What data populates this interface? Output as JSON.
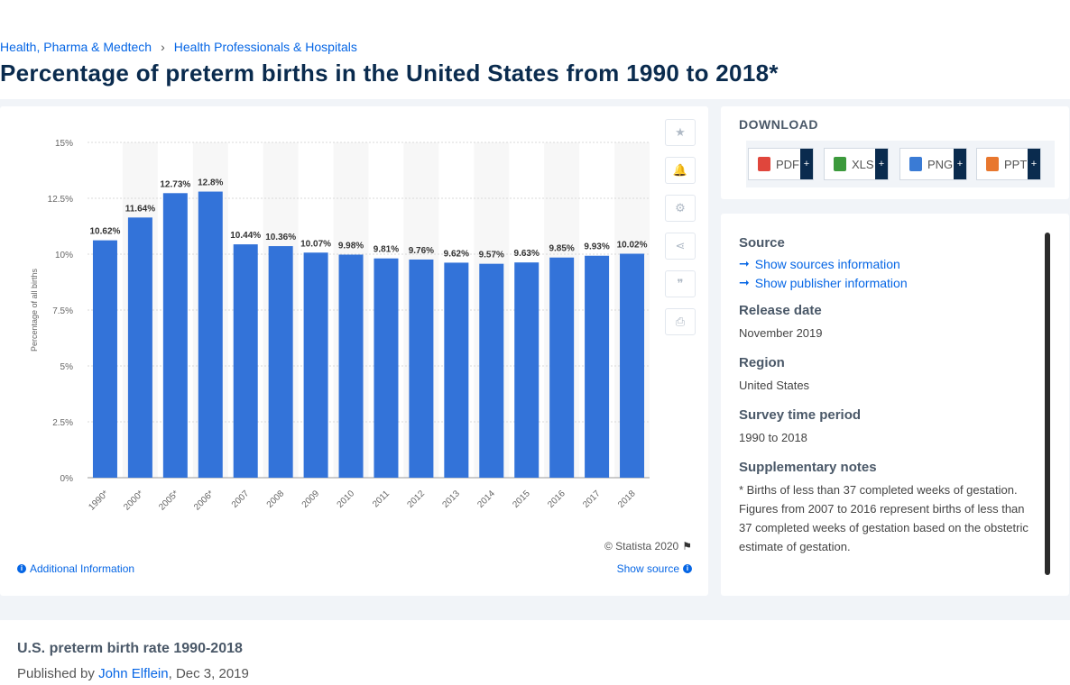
{
  "breadcrumb": [
    "Health, Pharma & Medtech",
    "Health Professionals & Hospitals"
  ],
  "page_title": "Percentage of preterm births in the United States from 1990 to 2018*",
  "tools": [
    {
      "name": "favorite-icon",
      "glyph": "★"
    },
    {
      "name": "bell-icon",
      "glyph": "🔔"
    },
    {
      "name": "gear-icon",
      "glyph": "⚙"
    },
    {
      "name": "share-icon",
      "glyph": "⋖"
    },
    {
      "name": "quote-icon",
      "glyph": "❞"
    },
    {
      "name": "print-icon",
      "glyph": "⎙"
    }
  ],
  "chart_data": {
    "type": "bar",
    "categories": [
      "1990*",
      "2000*",
      "2005*",
      "2006*",
      "2007",
      "2008",
      "2009",
      "2010",
      "2011",
      "2012",
      "2013",
      "2014",
      "2015",
      "2016",
      "2017",
      "2018"
    ],
    "values": [
      10.62,
      11.64,
      12.73,
      12.8,
      10.44,
      10.36,
      10.07,
      9.98,
      9.81,
      9.76,
      9.62,
      9.57,
      9.63,
      9.85,
      9.93,
      10.02
    ],
    "data_labels": [
      "10.62%",
      "11.64%",
      "12.73%",
      "12.8%",
      "10.44%",
      "10.36%",
      "10.07%",
      "9.98%",
      "9.81%",
      "9.76%",
      "9.62%",
      "9.57%",
      "9.63%",
      "9.85%",
      "9.93%",
      "10.02%"
    ],
    "ylabel": "Percentage of all births",
    "xlabel": "",
    "ylim": [
      0,
      15
    ],
    "yticks": [
      0,
      2.5,
      5,
      7.5,
      10,
      12.5,
      15
    ],
    "ytick_labels": [
      "0%",
      "2.5%",
      "5%",
      "7.5%",
      "10%",
      "12.5%",
      "15%"
    ],
    "grid": true,
    "bar_color": "#3373d9",
    "alt_band_color": "#f7f7f7"
  },
  "chart_footer": {
    "copyright": "© Statista 2020",
    "additional_info": "Additional Information",
    "show_source": "Show source"
  },
  "download": {
    "title": "DOWNLOAD",
    "buttons": [
      {
        "label": "PDF",
        "color": "#e0463c"
      },
      {
        "label": "XLS",
        "color": "#3c9a3c"
      },
      {
        "label": "PNG",
        "color": "#3a7bd5"
      },
      {
        "label": "PPT",
        "color": "#e8772e"
      }
    ],
    "plus": "+"
  },
  "meta": {
    "source_label": "Source",
    "show_sources": "Show sources information",
    "show_publisher": "Show publisher information",
    "release_label": "Release date",
    "release_value": "November 2019",
    "region_label": "Region",
    "region_value": "United States",
    "survey_label": "Survey time period",
    "survey_value": "1990 to 2018",
    "notes_label": "Supplementary notes",
    "notes_1": "* Births of less than 37 completed weeks of gestation.",
    "notes_2": "Figures from 2007 to 2016 represent births of less than 37 completed weeks of gestation based on the obstetric estimate of gestation."
  },
  "bottom": {
    "title": "U.S. preterm birth rate 1990-2018",
    "published_prefix": "Published by ",
    "author": "John Elflein",
    "date": ", Dec 3, 2019"
  }
}
